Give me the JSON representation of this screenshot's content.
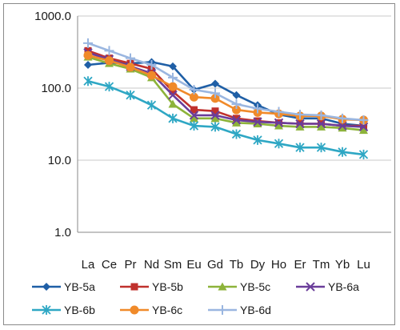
{
  "chart_data": {
    "type": "line",
    "title": "",
    "xlabel": "",
    "ylabel": "",
    "y_scale": "log",
    "ylim": [
      1,
      1000
    ],
    "y_ticks": [
      1,
      10,
      100,
      1000
    ],
    "y_tick_labels": [
      "1.0",
      "10.0",
      "100.0",
      "1000.0"
    ],
    "grid": "horizontal",
    "legend_position": "bottom",
    "categories": [
      "La",
      "Ce",
      "Pr",
      "Nd",
      "Sm",
      "Eu",
      "Gd",
      "Tb",
      "Dy",
      "Ho",
      "Er",
      "Tm",
      "Yb",
      "Lu"
    ],
    "series": [
      {
        "name": "YB-5a",
        "color": "#1f5fa6",
        "marker": "diamond",
        "values": [
          210,
          225,
          220,
          230,
          200,
          95,
          115,
          80,
          58,
          43,
          38,
          38,
          32,
          30
        ]
      },
      {
        "name": "YB-5b",
        "color": "#c0312d",
        "marker": "square",
        "values": [
          330,
          260,
          220,
          185,
          90,
          50,
          48,
          38,
          35,
          33,
          32,
          32,
          30,
          30
        ]
      },
      {
        "name": "YB-5c",
        "color": "#8db33a",
        "marker": "triangle",
        "values": [
          270,
          220,
          185,
          140,
          60,
          38,
          38,
          33,
          32,
          30,
          29,
          29,
          28,
          26
        ]
      },
      {
        "name": "YB-6a",
        "color": "#6a3d9a",
        "marker": "x",
        "values": [
          310,
          250,
          200,
          160,
          80,
          42,
          42,
          36,
          34,
          33,
          32,
          32,
          30,
          29
        ]
      },
      {
        "name": "YB-6b",
        "color": "#2ea7c4",
        "marker": "star",
        "values": [
          125,
          105,
          80,
          58,
          38,
          30,
          29,
          23,
          19,
          17,
          15,
          15,
          13,
          12
        ]
      },
      {
        "name": "YB-6c",
        "color": "#f08a2a",
        "marker": "circle",
        "values": [
          285,
          240,
          195,
          150,
          105,
          75,
          72,
          50,
          46,
          44,
          41,
          41,
          37,
          36
        ]
      },
      {
        "name": "YB-6d",
        "color": "#9ab6e0",
        "marker": "plus",
        "values": [
          420,
          330,
          260,
          210,
          140,
          95,
          85,
          60,
          52,
          47,
          43,
          42,
          38,
          36
        ]
      }
    ]
  }
}
